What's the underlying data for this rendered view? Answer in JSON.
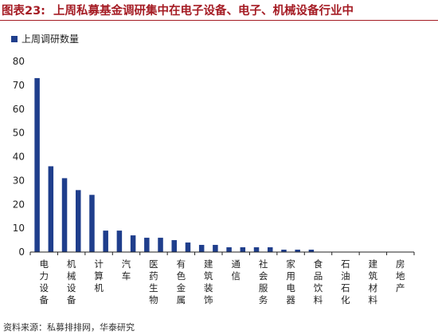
{
  "figure": {
    "label": "图表23:",
    "title": "上周私募基金调研集中在电子设备、电子、机械设备行业中"
  },
  "source": "资料来源：私募排排网，华泰研究",
  "colors": {
    "bar": "#1f3e8c",
    "header": "#a51c24"
  },
  "chart_data": {
    "type": "bar",
    "title": "",
    "xlabel": "",
    "ylabel": "",
    "ylim": [
      0,
      80
    ],
    "yticks": [
      0,
      10,
      20,
      30,
      40,
      50,
      60,
      70,
      80
    ],
    "grid": false,
    "legend": "top-left",
    "tick_labels_shown": [
      "电力设备",
      "机械设备",
      "计算机",
      "汽车",
      "医药生物",
      "有色金属",
      "建筑装饰",
      "通信",
      "社会服务",
      "家用电器",
      "食品饮料",
      "石油石化",
      "建筑材料",
      "房地产"
    ],
    "series": [
      {
        "name": "上周调研数量",
        "values": [
          73,
          36,
          31,
          26,
          24,
          9,
          9,
          7,
          6,
          6,
          5,
          4,
          3,
          3,
          2,
          2,
          2,
          2,
          1,
          1,
          1,
          0,
          0,
          0,
          0,
          0,
          0,
          0
        ]
      }
    ]
  }
}
